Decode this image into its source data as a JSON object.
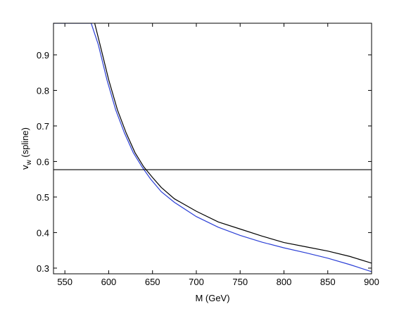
{
  "chart_data": {
    "type": "line",
    "xlabel": "M (GeV)",
    "ylabel": [
      "v",
      "w",
      " (spline)"
    ],
    "xlim": [
      537,
      900
    ],
    "ylim": [
      0.284,
      0.989
    ],
    "xticks": [
      550,
      600,
      650,
      700,
      750,
      800,
      850,
      900
    ],
    "yticks": [
      0.3,
      0.4,
      0.5,
      0.6,
      0.7,
      0.8,
      0.9
    ],
    "series": [
      {
        "color": "#000000",
        "x": [
          584,
          590,
          600,
          610,
          620,
          630,
          640,
          650,
          660,
          675,
          700,
          725,
          750,
          775,
          800,
          825,
          850,
          875,
          900
        ],
        "values": [
          0.989,
          0.93,
          0.83,
          0.745,
          0.68,
          0.625,
          0.585,
          0.555,
          0.527,
          0.495,
          0.46,
          0.43,
          0.41,
          0.39,
          0.372,
          0.36,
          0.348,
          0.333,
          0.314
        ]
      },
      {
        "color": "#2b3fd6",
        "x": [
          537,
          580,
          588,
          598,
          608,
          618,
          628,
          638,
          648,
          660,
          675,
          700,
          725,
          750,
          775,
          800,
          825,
          850,
          875,
          900
        ],
        "values": [
          0.989,
          0.989,
          0.93,
          0.83,
          0.745,
          0.68,
          0.625,
          0.585,
          0.55,
          0.515,
          0.485,
          0.445,
          0.415,
          0.392,
          0.373,
          0.357,
          0.343,
          0.328,
          0.31,
          0.29
        ]
      },
      {
        "color": "#000000",
        "x": [
          537,
          900
        ],
        "values": [
          0.577,
          0.577
        ]
      }
    ]
  }
}
